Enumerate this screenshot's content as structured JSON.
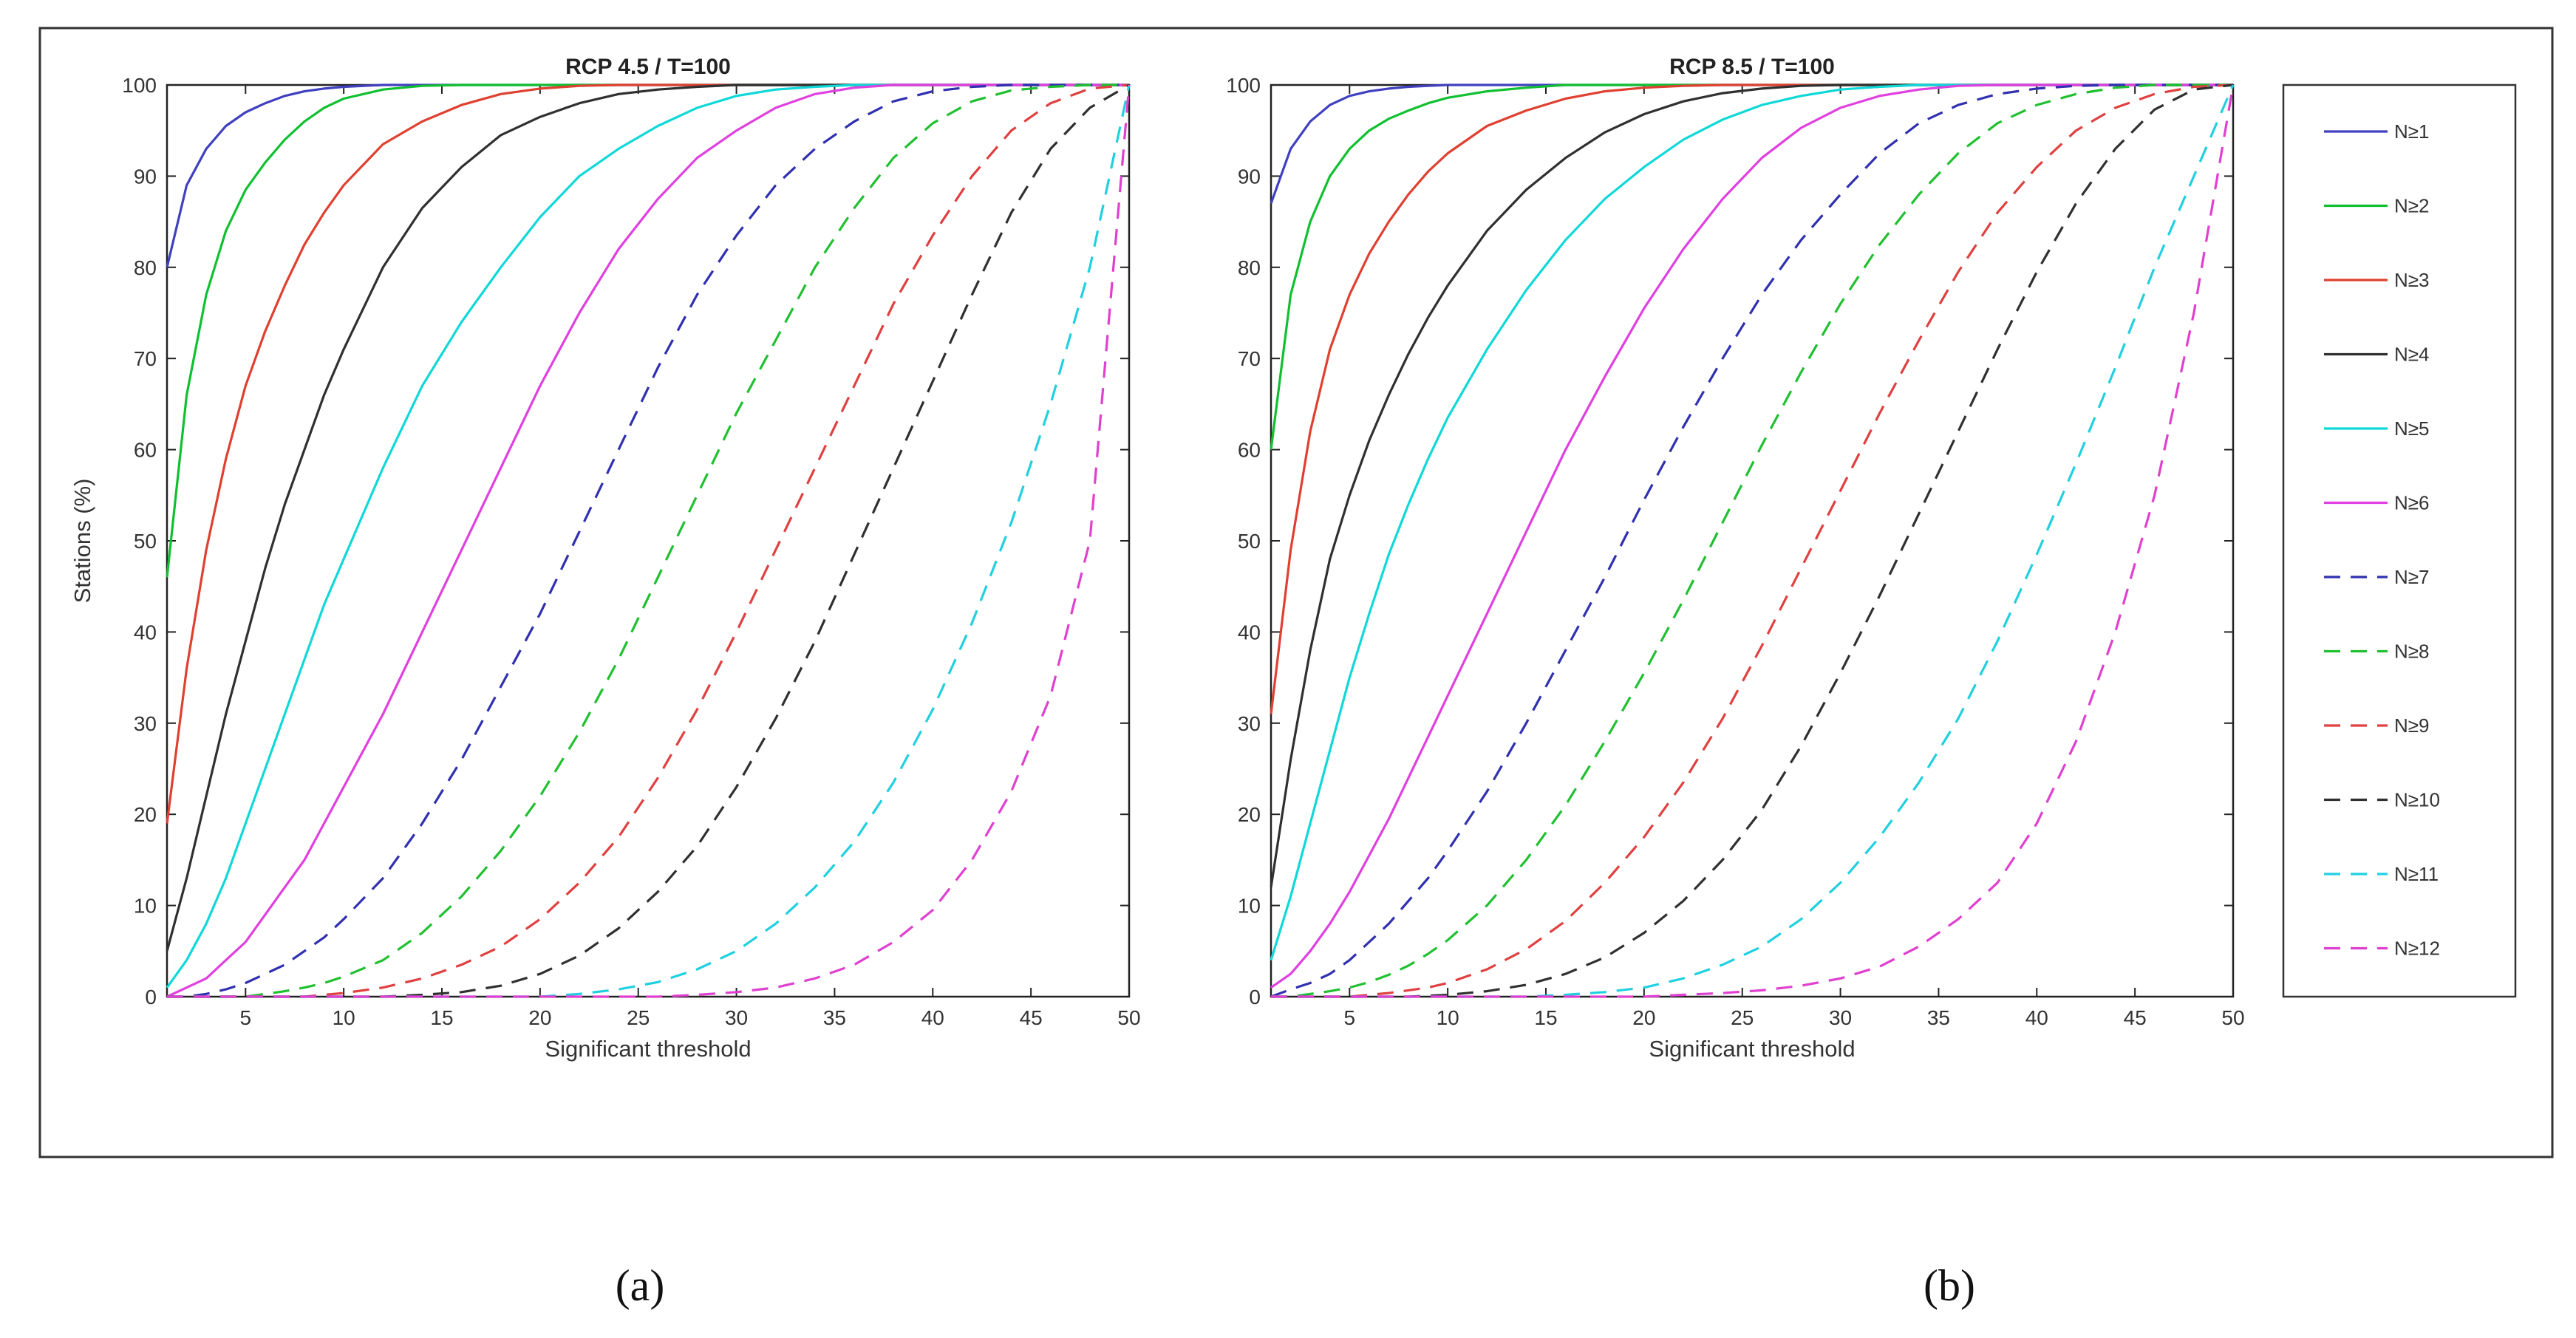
{
  "chart_data": [
    {
      "type": "line",
      "title": "RCP 4.5 / T=100",
      "xlabel": "Significant threshold",
      "ylabel": "Stations (%)",
      "xlim": [
        1,
        50
      ],
      "ylim": [
        0,
        100
      ],
      "xticks": [
        5,
        10,
        15,
        20,
        25,
        30,
        35,
        40,
        45,
        50
      ],
      "yticks": [
        0,
        10,
        20,
        30,
        40,
        50,
        60,
        70,
        80,
        90,
        100
      ],
      "x": [
        1,
        2,
        3,
        4,
        5,
        6,
        7,
        8,
        9,
        10,
        12,
        14,
        16,
        18,
        20,
        22,
        24,
        26,
        28,
        30,
        32,
        34,
        36,
        38,
        40,
        42,
        44,
        46,
        48,
        50
      ],
      "series": [
        {
          "name": "N≥1",
          "color": "#4040c0",
          "dashed": false,
          "values": [
            80,
            89,
            93,
            95.5,
            97,
            98,
            98.8,
            99.3,
            99.6,
            99.8,
            100,
            100,
            100,
            100,
            100,
            100,
            100,
            100,
            100,
            100,
            100,
            100,
            100,
            100,
            100,
            100,
            100,
            100,
            100,
            100
          ]
        },
        {
          "name": "N≥2",
          "color": "#10c030",
          "dashed": false,
          "values": [
            46,
            66,
            77,
            84,
            88.5,
            91.5,
            94,
            96,
            97.5,
            98.5,
            99.5,
            99.9,
            100,
            100,
            100,
            100,
            100,
            100,
            100,
            100,
            100,
            100,
            100,
            100,
            100,
            100,
            100,
            100,
            100,
            100
          ]
        },
        {
          "name": "N≥3",
          "color": "#e04030",
          "dashed": false,
          "values": [
            19,
            36,
            49,
            59,
            67,
            73,
            78,
            82.5,
            86,
            89,
            93.5,
            96,
            97.8,
            99,
            99.6,
            99.9,
            100,
            100,
            100,
            100,
            100,
            100,
            100,
            100,
            100,
            100,
            100,
            100,
            100,
            100
          ]
        },
        {
          "name": "N≥4",
          "color": "#303030",
          "dashed": false,
          "values": [
            5,
            13,
            22,
            31,
            39,
            47,
            54,
            60,
            66,
            71,
            80,
            86.5,
            91,
            94.5,
            96.5,
            98,
            99,
            99.5,
            99.8,
            100,
            100,
            100,
            100,
            100,
            100,
            100,
            100,
            100,
            100,
            100
          ]
        },
        {
          "name": "N≥5",
          "color": "#10d8d8",
          "dashed": false,
          "values": [
            1,
            4,
            8,
            13,
            19,
            25,
            31,
            37,
            43,
            48,
            58,
            67,
            74,
            80,
            85.5,
            90,
            93,
            95.5,
            97.5,
            98.8,
            99.5,
            99.8,
            100,
            100,
            100,
            100,
            100,
            100,
            100,
            100
          ]
        },
        {
          "name": "N≥6",
          "color": "#e040e0",
          "dashed": false,
          "values": [
            0,
            1,
            2,
            4,
            6,
            9,
            12,
            15,
            19,
            23,
            31,
            40,
            49,
            58,
            67,
            75,
            82,
            87.5,
            92,
            95,
            97.5,
            99,
            99.7,
            100,
            100,
            100,
            100,
            100,
            100,
            100
          ]
        },
        {
          "name": "N≥7",
          "color": "#3030b0",
          "dashed": true,
          "values": [
            0,
            0,
            0.3,
            0.8,
            1.5,
            2.5,
            3.5,
            5,
            6.5,
            8.5,
            13,
            19,
            26,
            34,
            42,
            51,
            60,
            69,
            77,
            83.5,
            89,
            93,
            96,
            98.2,
            99.3,
            99.8,
            100,
            100,
            100,
            100
          ]
        },
        {
          "name": "N≥8",
          "color": "#20c030",
          "dashed": true,
          "values": [
            0,
            0,
            0,
            0,
            0,
            0.3,
            0.6,
            1,
            1.5,
            2.2,
            4,
            7,
            11,
            16,
            22,
            29,
            37,
            46,
            55,
            64,
            72,
            80,
            86.5,
            92,
            95.8,
            98.2,
            99.4,
            99.8,
            100,
            100
          ]
        },
        {
          "name": "N≥9",
          "color": "#e04040",
          "dashed": true,
          "values": [
            0,
            0,
            0,
            0,
            0,
            0,
            0,
            0,
            0.2,
            0.4,
            1,
            2,
            3.5,
            5.5,
            8.5,
            12.5,
            17.5,
            24,
            31.5,
            40,
            49,
            58,
            67,
            76,
            83.5,
            90,
            95,
            98,
            99.6,
            100
          ]
        },
        {
          "name": "N≥10",
          "color": "#303030",
          "dashed": true,
          "values": [
            0,
            0,
            0,
            0,
            0,
            0,
            0,
            0,
            0,
            0,
            0,
            0.2,
            0.5,
            1.2,
            2.5,
            4.5,
            7.5,
            11.5,
            16.5,
            23,
            30.5,
            39,
            48.5,
            58,
            67.5,
            77,
            86,
            93,
            97.5,
            100
          ]
        },
        {
          "name": "N≥11",
          "color": "#20d0e0",
          "dashed": true,
          "values": [
            0,
            0,
            0,
            0,
            0,
            0,
            0,
            0,
            0,
            0,
            0,
            0,
            0,
            0,
            0,
            0.3,
            0.8,
            1.6,
            3,
            5,
            8,
            12,
            17,
            23.5,
            31.5,
            41,
            52,
            65,
            80,
            100
          ]
        },
        {
          "name": "N≥12",
          "color": "#e040d0",
          "dashed": true,
          "values": [
            0,
            0,
            0,
            0,
            0,
            0,
            0,
            0,
            0,
            0,
            0,
            0,
            0,
            0,
            0,
            0,
            0,
            0,
            0.2,
            0.5,
            1,
            2,
            3.5,
            6,
            9.5,
            15,
            22.5,
            33,
            50,
            100
          ]
        }
      ]
    },
    {
      "type": "line",
      "title": "RCP 8.5 / T=100",
      "xlabel": "Significant threshold",
      "ylabel": "",
      "xlim": [
        1,
        50
      ],
      "ylim": [
        0,
        100
      ],
      "xticks": [
        5,
        10,
        15,
        20,
        25,
        30,
        35,
        40,
        45,
        50
      ],
      "yticks": [
        0,
        10,
        20,
        30,
        40,
        50,
        60,
        70,
        80,
        90,
        100
      ],
      "x": [
        1,
        2,
        3,
        4,
        5,
        6,
        7,
        8,
        9,
        10,
        12,
        14,
        16,
        18,
        20,
        22,
        24,
        26,
        28,
        30,
        32,
        34,
        36,
        38,
        40,
        42,
        44,
        46,
        48,
        50
      ],
      "series": [
        {
          "name": "N≥1",
          "color": "#4040c0",
          "dashed": false,
          "values": [
            87,
            93,
            96,
            97.8,
            98.8,
            99.3,
            99.6,
            99.8,
            99.9,
            100,
            100,
            100,
            100,
            100,
            100,
            100,
            100,
            100,
            100,
            100,
            100,
            100,
            100,
            100,
            100,
            100,
            100,
            100,
            100,
            100
          ]
        },
        {
          "name": "N≥2",
          "color": "#10c030",
          "dashed": false,
          "values": [
            60,
            77,
            85,
            90,
            93,
            95,
            96.3,
            97.2,
            98,
            98.6,
            99.3,
            99.7,
            100,
            100,
            100,
            100,
            100,
            100,
            100,
            100,
            100,
            100,
            100,
            100,
            100,
            100,
            100,
            100,
            100,
            100
          ]
        },
        {
          "name": "N≥3",
          "color": "#e04030",
          "dashed": false,
          "values": [
            31,
            49,
            62,
            71,
            77,
            81.5,
            85,
            88,
            90.5,
            92.5,
            95.5,
            97.2,
            98.5,
            99.3,
            99.7,
            99.9,
            100,
            100,
            100,
            100,
            100,
            100,
            100,
            100,
            100,
            100,
            100,
            100,
            100,
            100
          ]
        },
        {
          "name": "N≥4",
          "color": "#303030",
          "dashed": false,
          "values": [
            12,
            26,
            38,
            48,
            55,
            61,
            66,
            70.5,
            74.5,
            78,
            84,
            88.5,
            92,
            94.8,
            96.8,
            98.2,
            99.1,
            99.6,
            99.9,
            100,
            100,
            100,
            100,
            100,
            100,
            100,
            100,
            100,
            100,
            100
          ]
        },
        {
          "name": "N≥5",
          "color": "#10d8d8",
          "dashed": false,
          "values": [
            4,
            11,
            19,
            27,
            35,
            42,
            48.5,
            54,
            59,
            63.5,
            71,
            77.5,
            83,
            87.5,
            91,
            94,
            96.2,
            97.8,
            98.8,
            99.5,
            99.8,
            100,
            100,
            100,
            100,
            100,
            100,
            100,
            100,
            100
          ]
        },
        {
          "name": "N≥6",
          "color": "#e040e0",
          "dashed": false,
          "values": [
            1,
            2.5,
            5,
            8,
            11.5,
            15.5,
            19.5,
            24,
            28.5,
            33,
            42,
            51,
            60,
            68,
            75.5,
            82,
            87.5,
            92,
            95.3,
            97.5,
            98.8,
            99.5,
            99.9,
            100,
            100,
            100,
            100,
            100,
            100,
            100
          ]
        },
        {
          "name": "N≥7",
          "color": "#3030b0",
          "dashed": true,
          "values": [
            0,
            0.8,
            1.5,
            2.5,
            4,
            6,
            8,
            10.5,
            13,
            16,
            22.5,
            30,
            38,
            46,
            54.5,
            62.5,
            70,
            77,
            83,
            88,
            92.5,
            95.8,
            97.8,
            99,
            99.6,
            99.9,
            100,
            100,
            100,
            100
          ]
        },
        {
          "name": "N≥8",
          "color": "#20c030",
          "dashed": true,
          "values": [
            0,
            0,
            0.3,
            0.6,
            1,
            1.6,
            2.4,
            3.4,
            4.7,
            6.2,
            10,
            15,
            21,
            28,
            35.5,
            43.5,
            52,
            60.5,
            68.5,
            76,
            82.5,
            88,
            92.5,
            95.8,
            97.8,
            99,
            99.7,
            100,
            100,
            100
          ]
        },
        {
          "name": "N≥9",
          "color": "#e04040",
          "dashed": true,
          "values": [
            0,
            0,
            0,
            0,
            0,
            0.2,
            0.4,
            0.7,
            1,
            1.5,
            3,
            5.2,
            8.3,
            12.5,
            17.5,
            23.5,
            30.5,
            38.5,
            47,
            55.5,
            64,
            72,
            79.5,
            86,
            91,
            95,
            97.5,
            99,
            99.8,
            100
          ]
        },
        {
          "name": "N≥10",
          "color": "#303030",
          "dashed": true,
          "values": [
            0,
            0,
            0,
            0,
            0,
            0,
            0,
            0,
            0.1,
            0.2,
            0.6,
            1.3,
            2.5,
            4.3,
            7,
            10.5,
            15,
            20.5,
            27.5,
            35.5,
            44,
            53,
            62,
            71,
            79.5,
            87,
            93,
            97.3,
            99.5,
            100
          ]
        },
        {
          "name": "N≥11",
          "color": "#20d0e0",
          "dashed": true,
          "values": [
            0,
            0,
            0,
            0,
            0,
            0,
            0,
            0,
            0,
            0,
            0,
            0,
            0.2,
            0.5,
            1,
            2,
            3.5,
            5.5,
            8.5,
            12.5,
            17.5,
            23.5,
            30.5,
            39,
            48.5,
            58.5,
            69,
            80,
            90,
            100
          ]
        },
        {
          "name": "N≥12",
          "color": "#e040d0",
          "dashed": true,
          "values": [
            0,
            0,
            0,
            0,
            0,
            0,
            0,
            0,
            0,
            0,
            0,
            0,
            0,
            0,
            0,
            0.2,
            0.4,
            0.7,
            1.2,
            2,
            3.3,
            5.5,
            8.5,
            12.5,
            19,
            28,
            40,
            55,
            75,
            100
          ]
        }
      ]
    }
  ],
  "legend": {
    "placement": "right",
    "entries": [
      {
        "label": "N≥1",
        "color": "#4040c0",
        "dashed": false
      },
      {
        "label": "N≥2",
        "color": "#10c030",
        "dashed": false
      },
      {
        "label": "N≥3",
        "color": "#e04030",
        "dashed": false
      },
      {
        "label": "N≥4",
        "color": "#303030",
        "dashed": false
      },
      {
        "label": "N≥5",
        "color": "#10d8d8",
        "dashed": false
      },
      {
        "label": "N≥6",
        "color": "#e040e0",
        "dashed": false
      },
      {
        "label": "N≥7",
        "color": "#3030b0",
        "dashed": true
      },
      {
        "label": "N≥8",
        "color": "#20c030",
        "dashed": true
      },
      {
        "label": "N≥9",
        "color": "#e04040",
        "dashed": true
      },
      {
        "label": "N≥10",
        "color": "#303030",
        "dashed": true
      },
      {
        "label": "N≥11",
        "color": "#20d0e0",
        "dashed": true
      },
      {
        "label": "N≥12",
        "color": "#e040d0",
        "dashed": true
      }
    ]
  },
  "captions": {
    "a": "(a)",
    "b": "(b)"
  }
}
